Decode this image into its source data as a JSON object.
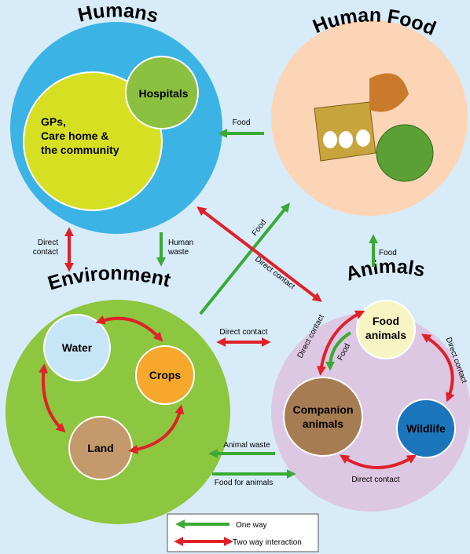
{
  "titles": {
    "humans": "Humans",
    "human_food": "Human Food",
    "environment": "Environment",
    "animals": "Animals"
  },
  "nodes": {
    "hospitals": "Hospitals",
    "gps": [
      "GPs,",
      "Care home &",
      "the community"
    ],
    "water": "Water",
    "crops": "Crops",
    "land": "Land",
    "food_animals": [
      "Food",
      "animals"
    ],
    "companion_animals": [
      "Companion",
      "animals"
    ],
    "wildlife": "Wildlife"
  },
  "arrows": {
    "food_to_humans": "Food",
    "humans_env": [
      "Direct",
      "contact"
    ],
    "human_waste": [
      "Human",
      "waste"
    ],
    "env_to_food": "Food",
    "humans_animals": "Direct contact",
    "animals_to_food": "Food",
    "env_animals": "Direct contact",
    "food_animals_companion": "Direct contact",
    "food_to_companion": "Food",
    "food_animals_wildlife": "Direct contact",
    "companion_wildlife": "Direct contact",
    "animal_waste": "Animal waste",
    "food_for_animals": "Food for animals"
  },
  "legend": {
    "one_way": "One way",
    "two_way": "Two way interaction"
  }
}
